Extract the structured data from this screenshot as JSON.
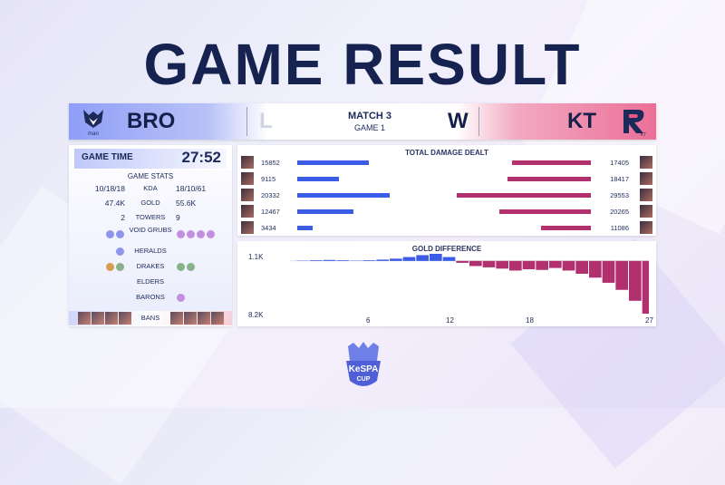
{
  "title": "GAME RESULT",
  "colors": {
    "blue": "#3a5ce6",
    "red": "#b2306e",
    "navy": "#16224f"
  },
  "scoreboard": {
    "left_team": "BRO",
    "left_result": "L",
    "match": "MATCH 3",
    "game": "GAME 1",
    "right_result": "W",
    "right_team": "KT",
    "left_logo_text": "man",
    "right_logo_text": "KT"
  },
  "game_time": {
    "label": "GAME TIME",
    "value": "27:52"
  },
  "stats": {
    "header": "GAME STATS",
    "kda": {
      "left": "10/18/18",
      "label": "KDA",
      "right": "18/10/61"
    },
    "gold": {
      "left": "47.4K",
      "label": "GOLD",
      "right": "55.6K"
    },
    "towers": {
      "left": "2",
      "label": "TOWERS",
      "right": "9"
    },
    "void_grubs": {
      "label": "VOID GRUBS",
      "left_count": 2,
      "right_count": 4
    },
    "heralds": {
      "label": "HERALDS"
    },
    "drakes": {
      "label": "DRAKES"
    },
    "elders": {
      "label": "ELDERS"
    },
    "barons": {
      "label": "BARONS"
    },
    "bans": {
      "label": "BANS"
    }
  },
  "damage": {
    "title": "TOTAL DAMAGE DEALT",
    "left": [
      15852,
      9115,
      20332,
      12467,
      3434
    ],
    "right": [
      17405,
      18417,
      29553,
      20265,
      11086
    ]
  },
  "gold_diff": {
    "title": "GOLD DIFFERENCE",
    "top_label": "1.1K",
    "bottom_label": "8.2K",
    "x_ticks": [
      "6",
      "12",
      "18",
      "27"
    ]
  },
  "chart_data": [
    {
      "type": "bar",
      "title": "TOTAL DAMAGE DEALT",
      "categories": [
        "1",
        "2",
        "3",
        "4",
        "5"
      ],
      "series": [
        {
          "name": "BRO",
          "values": [
            15852,
            9115,
            20332,
            12467,
            3434
          ]
        },
        {
          "name": "KT",
          "values": [
            17405,
            18417,
            29553,
            20265,
            11086
          ]
        }
      ]
    },
    {
      "type": "area",
      "title": "GOLD DIFFERENCE",
      "x": [
        0,
        1,
        2,
        3,
        4,
        5,
        6,
        7,
        8,
        9,
        10,
        11,
        12,
        13,
        14,
        15,
        16,
        17,
        18,
        19,
        20,
        21,
        22,
        23,
        24,
        25,
        26,
        27
      ],
      "values": [
        0,
        0.05,
        0.1,
        0.15,
        0.1,
        0.05,
        0.1,
        0.2,
        0.35,
        0.6,
        0.9,
        1.1,
        0.6,
        -0.3,
        -0.8,
        -1.0,
        -1.2,
        -1.5,
        -1.3,
        -1.4,
        -1.1,
        -1.5,
        -2.0,
        -2.6,
        -3.4,
        -4.5,
        -6.2,
        -8.2
      ],
      "ylim": [
        -8.2,
        1.1
      ]
    }
  ],
  "cup": {
    "line1": "KeSPA",
    "line2": "CUP"
  }
}
